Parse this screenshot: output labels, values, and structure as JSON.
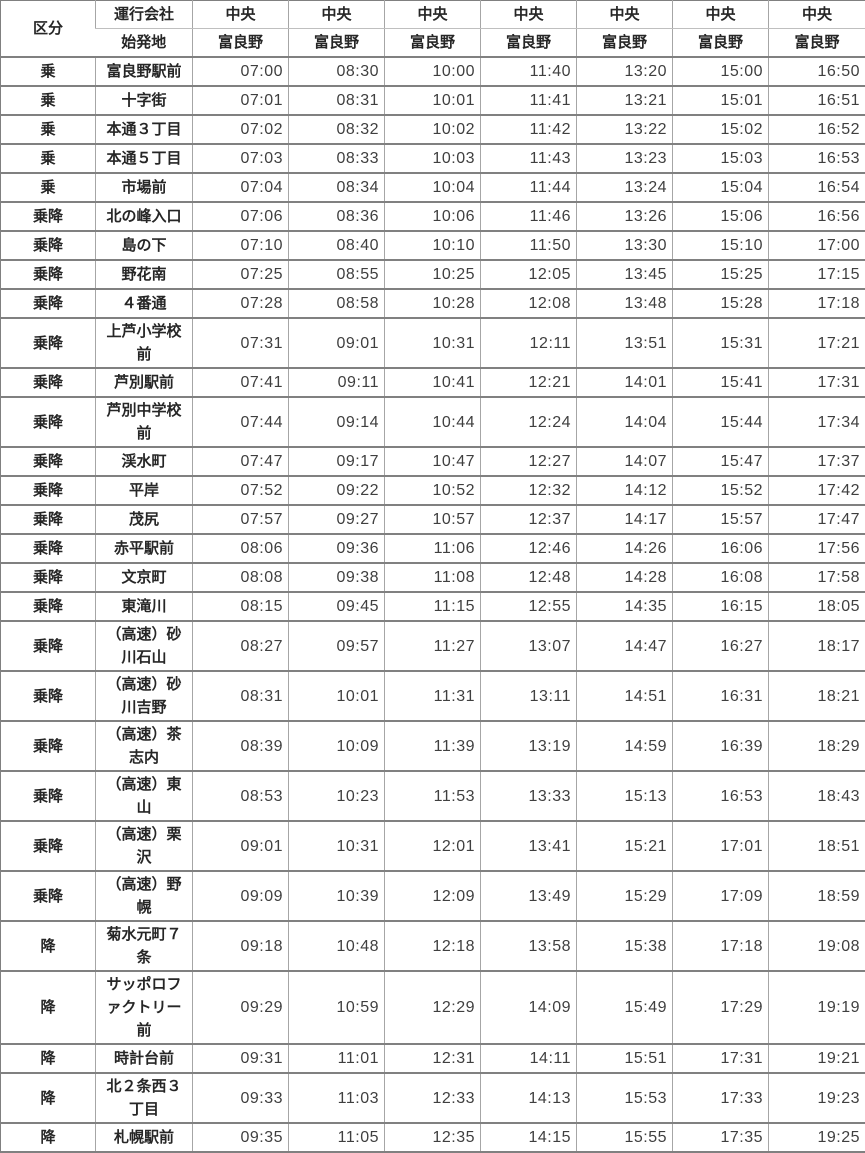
{
  "colors": {
    "row_border": "#808080",
    "column_border": "#a6a6a6",
    "header_divider": "#bfbfbf",
    "heading_text": "#262626",
    "time_text": "#3f3f3f",
    "background": "#ffffff"
  },
  "table": {
    "header": {
      "category": "区分",
      "company": "運行会社",
      "origin": "始発地",
      "time_columns": [
        {
          "company": "中央",
          "origin": "富良野"
        },
        {
          "company": "中央",
          "origin": "富良野"
        },
        {
          "company": "中央",
          "origin": "富良野"
        },
        {
          "company": "中央",
          "origin": "富良野"
        },
        {
          "company": "中央",
          "origin": "富良野"
        },
        {
          "company": "中央",
          "origin": "富良野"
        },
        {
          "company": "中央",
          "origin": "富良野"
        }
      ]
    },
    "rows": [
      {
        "category": "乗",
        "stop": "富良野駅前",
        "times": [
          "07:00",
          "08:30",
          "10:00",
          "11:40",
          "13:20",
          "15:00",
          "16:50"
        ]
      },
      {
        "category": "乗",
        "stop": "十字街",
        "times": [
          "07:01",
          "08:31",
          "10:01",
          "11:41",
          "13:21",
          "15:01",
          "16:51"
        ]
      },
      {
        "category": "乗",
        "stop": "本通３丁目",
        "times": [
          "07:02",
          "08:32",
          "10:02",
          "11:42",
          "13:22",
          "15:02",
          "16:52"
        ]
      },
      {
        "category": "乗",
        "stop": "本通５丁目",
        "times": [
          "07:03",
          "08:33",
          "10:03",
          "11:43",
          "13:23",
          "15:03",
          "16:53"
        ]
      },
      {
        "category": "乗",
        "stop": "市場前",
        "times": [
          "07:04",
          "08:34",
          "10:04",
          "11:44",
          "13:24",
          "15:04",
          "16:54"
        ]
      },
      {
        "category": "乗降",
        "stop": "北の峰入口",
        "times": [
          "07:06",
          "08:36",
          "10:06",
          "11:46",
          "13:26",
          "15:06",
          "16:56"
        ]
      },
      {
        "category": "乗降",
        "stop": "島の下",
        "times": [
          "07:10",
          "08:40",
          "10:10",
          "11:50",
          "13:30",
          "15:10",
          "17:00"
        ]
      },
      {
        "category": "乗降",
        "stop": "野花南",
        "times": [
          "07:25",
          "08:55",
          "10:25",
          "12:05",
          "13:45",
          "15:25",
          "17:15"
        ]
      },
      {
        "category": "乗降",
        "stop": "４番通",
        "times": [
          "07:28",
          "08:58",
          "10:28",
          "12:08",
          "13:48",
          "15:28",
          "17:18"
        ]
      },
      {
        "category": "乗降",
        "stop": "上芦小学校前",
        "times": [
          "07:31",
          "09:01",
          "10:31",
          "12:11",
          "13:51",
          "15:31",
          "17:21"
        ]
      },
      {
        "category": "乗降",
        "stop": "芦別駅前",
        "times": [
          "07:41",
          "09:11",
          "10:41",
          "12:21",
          "14:01",
          "15:41",
          "17:31"
        ]
      },
      {
        "category": "乗降",
        "stop": "芦別中学校前",
        "times": [
          "07:44",
          "09:14",
          "10:44",
          "12:24",
          "14:04",
          "15:44",
          "17:34"
        ]
      },
      {
        "category": "乗降",
        "stop": "渓水町",
        "times": [
          "07:47",
          "09:17",
          "10:47",
          "12:27",
          "14:07",
          "15:47",
          "17:37"
        ]
      },
      {
        "category": "乗降",
        "stop": "平岸",
        "times": [
          "07:52",
          "09:22",
          "10:52",
          "12:32",
          "14:12",
          "15:52",
          "17:42"
        ]
      },
      {
        "category": "乗降",
        "stop": "茂尻",
        "times": [
          "07:57",
          "09:27",
          "10:57",
          "12:37",
          "14:17",
          "15:57",
          "17:47"
        ]
      },
      {
        "category": "乗降",
        "stop": "赤平駅前",
        "times": [
          "08:06",
          "09:36",
          "11:06",
          "12:46",
          "14:26",
          "16:06",
          "17:56"
        ]
      },
      {
        "category": "乗降",
        "stop": "文京町",
        "times": [
          "08:08",
          "09:38",
          "11:08",
          "12:48",
          "14:28",
          "16:08",
          "17:58"
        ]
      },
      {
        "category": "乗降",
        "stop": "東滝川",
        "times": [
          "08:15",
          "09:45",
          "11:15",
          "12:55",
          "14:35",
          "16:15",
          "18:05"
        ]
      },
      {
        "category": "乗降",
        "stop": "（高速）砂川石山",
        "times": [
          "08:27",
          "09:57",
          "11:27",
          "13:07",
          "14:47",
          "16:27",
          "18:17"
        ]
      },
      {
        "category": "乗降",
        "stop": "（高速）砂川吉野",
        "times": [
          "08:31",
          "10:01",
          "11:31",
          "13:11",
          "14:51",
          "16:31",
          "18:21"
        ]
      },
      {
        "category": "乗降",
        "stop": "（高速）茶志内",
        "times": [
          "08:39",
          "10:09",
          "11:39",
          "13:19",
          "14:59",
          "16:39",
          "18:29"
        ]
      },
      {
        "category": "乗降",
        "stop": "（高速）東山",
        "times": [
          "08:53",
          "10:23",
          "11:53",
          "13:33",
          "15:13",
          "16:53",
          "18:43"
        ]
      },
      {
        "category": "乗降",
        "stop": "（高速）栗沢",
        "times": [
          "09:01",
          "10:31",
          "12:01",
          "13:41",
          "15:21",
          "17:01",
          "18:51"
        ]
      },
      {
        "category": "乗降",
        "stop": "（高速）野幌",
        "times": [
          "09:09",
          "10:39",
          "12:09",
          "13:49",
          "15:29",
          "17:09",
          "18:59"
        ]
      },
      {
        "category": "降",
        "stop": "菊水元町７条",
        "times": [
          "09:18",
          "10:48",
          "12:18",
          "13:58",
          "15:38",
          "17:18",
          "19:08"
        ]
      },
      {
        "category": "降",
        "stop": "サッポロファクトリー前",
        "times": [
          "09:29",
          "10:59",
          "12:29",
          "14:09",
          "15:49",
          "17:29",
          "19:19"
        ]
      },
      {
        "category": "降",
        "stop": "時計台前",
        "times": [
          "09:31",
          "11:01",
          "12:31",
          "14:11",
          "15:51",
          "17:31",
          "19:21"
        ]
      },
      {
        "category": "降",
        "stop": "北２条西３丁目",
        "times": [
          "09:33",
          "11:03",
          "12:33",
          "14:13",
          "15:53",
          "17:33",
          "19:23"
        ]
      },
      {
        "category": "降",
        "stop": "札幌駅前",
        "times": [
          "09:35",
          "11:05",
          "12:35",
          "14:15",
          "15:55",
          "17:35",
          "19:25"
        ]
      }
    ]
  }
}
